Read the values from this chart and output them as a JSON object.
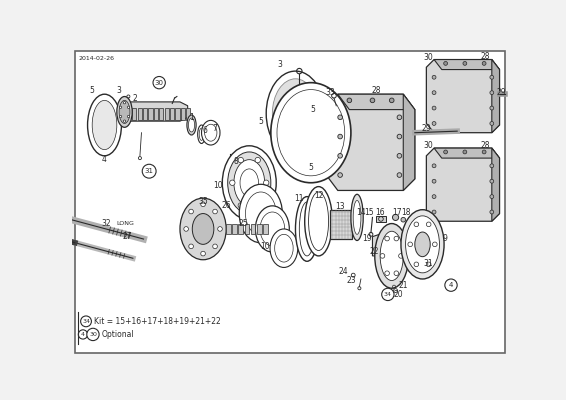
{
  "bg_color": "#f2f2f2",
  "white": "#ffffff",
  "dark": "#2a2a2a",
  "gray": "#888888",
  "lightgray": "#cccccc",
  "date_text": "2014-02-26",
  "kit_text": "Kit = 15+16+17+18+19+21+22",
  "optional_text": "Optional",
  "figsize": [
    5.66,
    4.0
  ],
  "dpi": 100
}
